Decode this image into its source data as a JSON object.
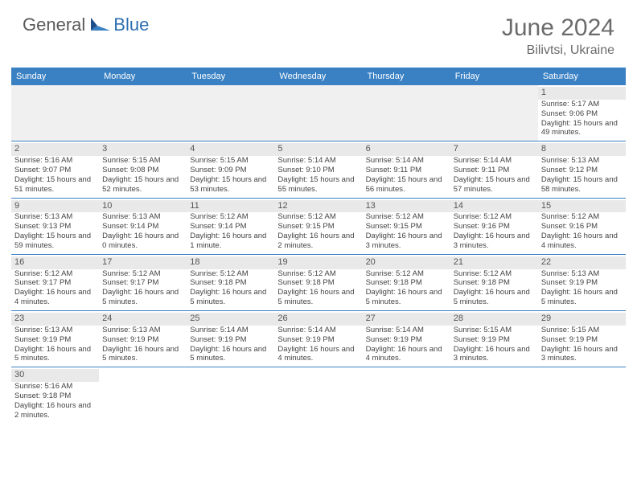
{
  "brand": {
    "part1": "General",
    "part2": "Blue"
  },
  "title": "June 2024",
  "location": "Bilivtsi, Ukraine",
  "colors": {
    "header_bg": "#3a81c4",
    "header_fg": "#ffffff",
    "daynum_bg": "#e9e9e9",
    "empty_bg": "#f0f0f0",
    "rule": "#3a81c4"
  },
  "day_labels": [
    "Sunday",
    "Monday",
    "Tuesday",
    "Wednesday",
    "Thursday",
    "Friday",
    "Saturday"
  ],
  "weeks": [
    [
      null,
      null,
      null,
      null,
      null,
      null,
      {
        "n": 1,
        "sunrise": "Sunrise: 5:17 AM",
        "sunset": "Sunset: 9:06 PM",
        "daylight": "Daylight: 15 hours and 49 minutes."
      }
    ],
    [
      {
        "n": 2,
        "sunrise": "Sunrise: 5:16 AM",
        "sunset": "Sunset: 9:07 PM",
        "daylight": "Daylight: 15 hours and 51 minutes."
      },
      {
        "n": 3,
        "sunrise": "Sunrise: 5:15 AM",
        "sunset": "Sunset: 9:08 PM",
        "daylight": "Daylight: 15 hours and 52 minutes."
      },
      {
        "n": 4,
        "sunrise": "Sunrise: 5:15 AM",
        "sunset": "Sunset: 9:09 PM",
        "daylight": "Daylight: 15 hours and 53 minutes."
      },
      {
        "n": 5,
        "sunrise": "Sunrise: 5:14 AM",
        "sunset": "Sunset: 9:10 PM",
        "daylight": "Daylight: 15 hours and 55 minutes."
      },
      {
        "n": 6,
        "sunrise": "Sunrise: 5:14 AM",
        "sunset": "Sunset: 9:11 PM",
        "daylight": "Daylight: 15 hours and 56 minutes."
      },
      {
        "n": 7,
        "sunrise": "Sunrise: 5:14 AM",
        "sunset": "Sunset: 9:11 PM",
        "daylight": "Daylight: 15 hours and 57 minutes."
      },
      {
        "n": 8,
        "sunrise": "Sunrise: 5:13 AM",
        "sunset": "Sunset: 9:12 PM",
        "daylight": "Daylight: 15 hours and 58 minutes."
      }
    ],
    [
      {
        "n": 9,
        "sunrise": "Sunrise: 5:13 AM",
        "sunset": "Sunset: 9:13 PM",
        "daylight": "Daylight: 15 hours and 59 minutes."
      },
      {
        "n": 10,
        "sunrise": "Sunrise: 5:13 AM",
        "sunset": "Sunset: 9:14 PM",
        "daylight": "Daylight: 16 hours and 0 minutes."
      },
      {
        "n": 11,
        "sunrise": "Sunrise: 5:12 AM",
        "sunset": "Sunset: 9:14 PM",
        "daylight": "Daylight: 16 hours and 1 minute."
      },
      {
        "n": 12,
        "sunrise": "Sunrise: 5:12 AM",
        "sunset": "Sunset: 9:15 PM",
        "daylight": "Daylight: 16 hours and 2 minutes."
      },
      {
        "n": 13,
        "sunrise": "Sunrise: 5:12 AM",
        "sunset": "Sunset: 9:15 PM",
        "daylight": "Daylight: 16 hours and 3 minutes."
      },
      {
        "n": 14,
        "sunrise": "Sunrise: 5:12 AM",
        "sunset": "Sunset: 9:16 PM",
        "daylight": "Daylight: 16 hours and 3 minutes."
      },
      {
        "n": 15,
        "sunrise": "Sunrise: 5:12 AM",
        "sunset": "Sunset: 9:16 PM",
        "daylight": "Daylight: 16 hours and 4 minutes."
      }
    ],
    [
      {
        "n": 16,
        "sunrise": "Sunrise: 5:12 AM",
        "sunset": "Sunset: 9:17 PM",
        "daylight": "Daylight: 16 hours and 4 minutes."
      },
      {
        "n": 17,
        "sunrise": "Sunrise: 5:12 AM",
        "sunset": "Sunset: 9:17 PM",
        "daylight": "Daylight: 16 hours and 5 minutes."
      },
      {
        "n": 18,
        "sunrise": "Sunrise: 5:12 AM",
        "sunset": "Sunset: 9:18 PM",
        "daylight": "Daylight: 16 hours and 5 minutes."
      },
      {
        "n": 19,
        "sunrise": "Sunrise: 5:12 AM",
        "sunset": "Sunset: 9:18 PM",
        "daylight": "Daylight: 16 hours and 5 minutes."
      },
      {
        "n": 20,
        "sunrise": "Sunrise: 5:12 AM",
        "sunset": "Sunset: 9:18 PM",
        "daylight": "Daylight: 16 hours and 5 minutes."
      },
      {
        "n": 21,
        "sunrise": "Sunrise: 5:12 AM",
        "sunset": "Sunset: 9:18 PM",
        "daylight": "Daylight: 16 hours and 5 minutes."
      },
      {
        "n": 22,
        "sunrise": "Sunrise: 5:13 AM",
        "sunset": "Sunset: 9:19 PM",
        "daylight": "Daylight: 16 hours and 5 minutes."
      }
    ],
    [
      {
        "n": 23,
        "sunrise": "Sunrise: 5:13 AM",
        "sunset": "Sunset: 9:19 PM",
        "daylight": "Daylight: 16 hours and 5 minutes."
      },
      {
        "n": 24,
        "sunrise": "Sunrise: 5:13 AM",
        "sunset": "Sunset: 9:19 PM",
        "daylight": "Daylight: 16 hours and 5 minutes."
      },
      {
        "n": 25,
        "sunrise": "Sunrise: 5:14 AM",
        "sunset": "Sunset: 9:19 PM",
        "daylight": "Daylight: 16 hours and 5 minutes."
      },
      {
        "n": 26,
        "sunrise": "Sunrise: 5:14 AM",
        "sunset": "Sunset: 9:19 PM",
        "daylight": "Daylight: 16 hours and 4 minutes."
      },
      {
        "n": 27,
        "sunrise": "Sunrise: 5:14 AM",
        "sunset": "Sunset: 9:19 PM",
        "daylight": "Daylight: 16 hours and 4 minutes."
      },
      {
        "n": 28,
        "sunrise": "Sunrise: 5:15 AM",
        "sunset": "Sunset: 9:19 PM",
        "daylight": "Daylight: 16 hours and 3 minutes."
      },
      {
        "n": 29,
        "sunrise": "Sunrise: 5:15 AM",
        "sunset": "Sunset: 9:19 PM",
        "daylight": "Daylight: 16 hours and 3 minutes."
      }
    ],
    [
      {
        "n": 30,
        "sunrise": "Sunrise: 5:16 AM",
        "sunset": "Sunset: 9:18 PM",
        "daylight": "Daylight: 16 hours and 2 minutes."
      },
      null,
      null,
      null,
      null,
      null,
      null
    ]
  ]
}
